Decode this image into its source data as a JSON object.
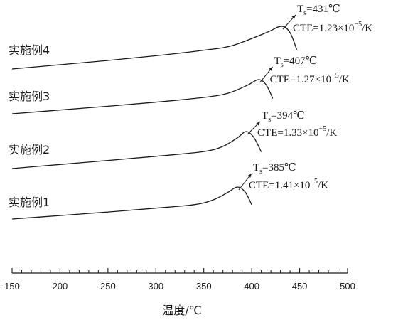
{
  "chart_data": {
    "type": "line",
    "xlabel": "温度/℃",
    "ylabel": "",
    "xlim": [
      150,
      500
    ],
    "xticks": [
      150,
      200,
      250,
      300,
      350,
      400,
      450,
      500
    ],
    "grid": false,
    "series": [
      {
        "name": "实施例1",
        "ts_label": "T",
        "ts_sub": "s",
        "ts_value": "=385℃",
        "cte_text": "CTE=1.41×10",
        "cte_exp": "−5",
        "cte_unit": "/K",
        "ts": 385,
        "cte": 1.41e-05,
        "x": [
          150,
          200,
          250,
          300,
          340,
          360,
          375,
          385,
          393,
          400
        ],
        "y": [
          0.0,
          0.11,
          0.22,
          0.34,
          0.45,
          0.6,
          0.83,
          1.0,
          0.85,
          0.45
        ]
      },
      {
        "name": "实施例2",
        "ts_label": "T",
        "ts_sub": "s",
        "ts_value": "=394℃",
        "cte_text": "CTE=1.33×10",
        "cte_exp": "−5",
        "cte_unit": "/K",
        "ts": 394,
        "cte": 1.33e-05,
        "x": [
          150,
          200,
          250,
          300,
          350,
          370,
          385,
          394,
          402,
          410
        ],
        "y": [
          0.0,
          0.11,
          0.22,
          0.33,
          0.46,
          0.6,
          0.83,
          1.0,
          0.85,
          0.45
        ]
      },
      {
        "name": "实施例3",
        "ts_label": "T",
        "ts_sub": "s",
        "ts_value": "=407℃",
        "cte_text": "CTE=1.27×10",
        "cte_exp": "−5",
        "cte_unit": "/K",
        "ts": 407,
        "cte": 1.27e-05,
        "x": [
          150,
          200,
          250,
          300,
          350,
          375,
          395,
          407,
          415,
          422
        ],
        "y": [
          0.0,
          0.11,
          0.22,
          0.34,
          0.48,
          0.6,
          0.83,
          1.0,
          0.85,
          0.45
        ]
      },
      {
        "name": "实施例4",
        "ts_label": "T",
        "ts_sub": "s",
        "ts_value": "=431℃",
        "cte_text": "CTE=1.23×10",
        "cte_exp": "−5",
        "cte_unit": "/K",
        "ts": 431,
        "cte": 1.23e-05,
        "x": [
          150,
          200,
          250,
          300,
          350,
          380,
          415,
          431,
          440,
          447
        ],
        "y": [
          0.0,
          0.1,
          0.2,
          0.31,
          0.44,
          0.55,
          0.85,
          1.0,
          0.85,
          0.45
        ]
      }
    ]
  }
}
